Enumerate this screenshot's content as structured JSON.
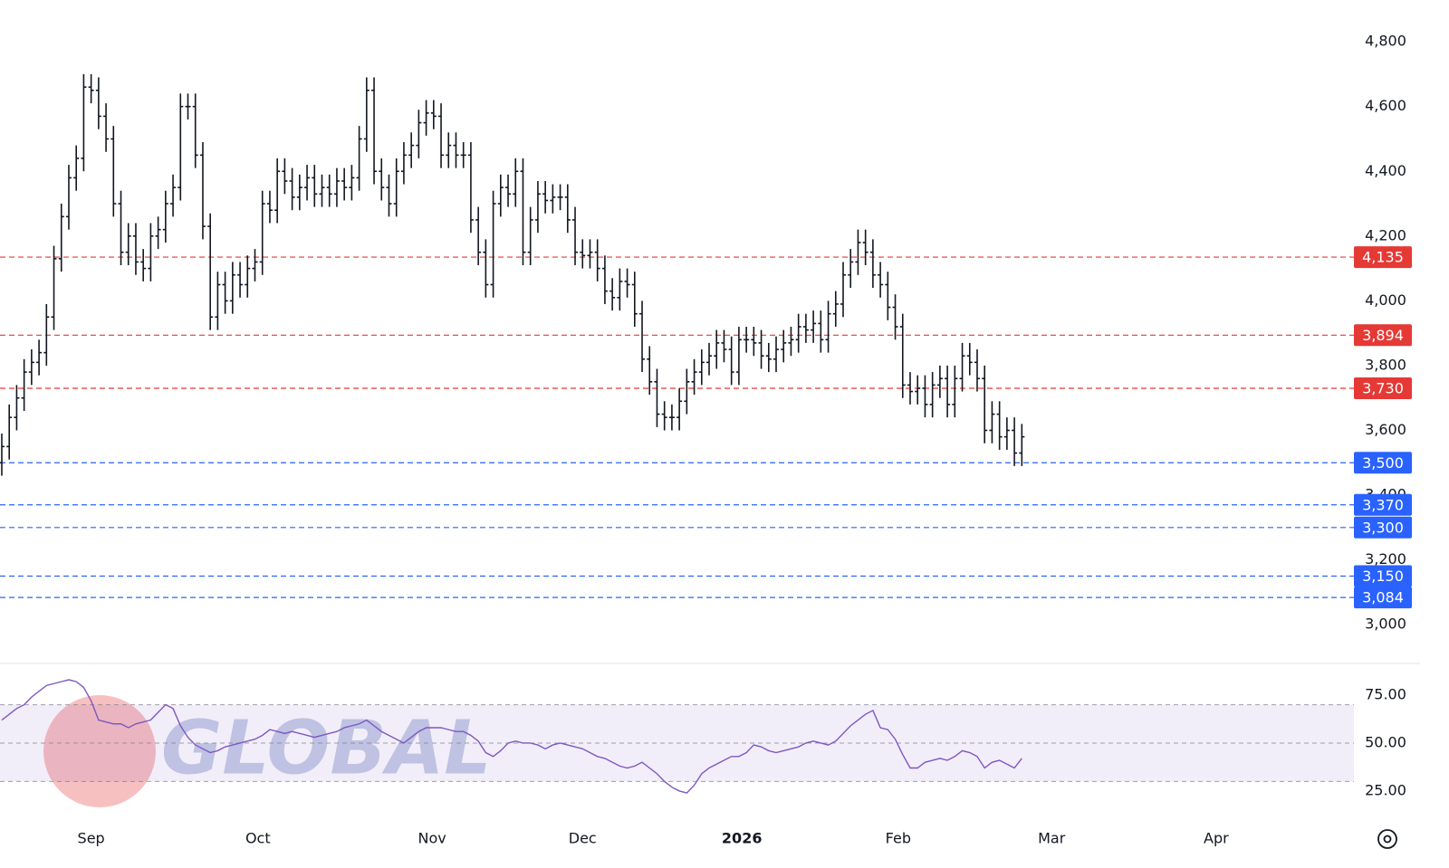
{
  "chart_data": {
    "type": "ohlc",
    "watermark": "GLOBAL",
    "color": "#131722",
    "xlim": [
      -0.24,
      181.6
    ],
    "xticks": [
      {
        "value": 12.0,
        "label": "Sep"
      },
      {
        "value": 34.4,
        "label": "Oct"
      },
      {
        "value": 57.8,
        "label": "Nov"
      },
      {
        "value": 78.0,
        "label": "Dec"
      },
      {
        "value": 99.4,
        "label": "2026"
      },
      {
        "value": 120.4,
        "label": "Feb"
      },
      {
        "value": 141.0,
        "label": "Mar"
      },
      {
        "value": 163.1,
        "label": "Apr"
      }
    ],
    "ylim": [
      2883,
      4929
    ],
    "yticks": [
      {
        "value": 3000,
        "label": "3,000"
      },
      {
        "value": 3200,
        "label": "3,200"
      },
      {
        "value": 3400,
        "label": "3,400"
      },
      {
        "value": 3600,
        "label": "3,600"
      },
      {
        "value": 3800,
        "label": "3,800"
      },
      {
        "value": 4000,
        "label": "4,000"
      },
      {
        "value": 4200,
        "label": "4,200"
      },
      {
        "value": 4400,
        "label": "4,400"
      },
      {
        "value": 4600,
        "label": "4,600"
      },
      {
        "value": 4800,
        "label": "4,800"
      }
    ],
    "levels": [
      {
        "value": 4135,
        "label": "4,135",
        "color": "#e53935"
      },
      {
        "value": 3894,
        "label": "3,894",
        "color": "#e53935"
      },
      {
        "value": 3730,
        "label": "3,730",
        "color": "#e53935"
      },
      {
        "value": 3500,
        "label": "3,500",
        "color": "#2962ff"
      },
      {
        "value": 3370,
        "label": "3,370",
        "color": "#2962ff"
      },
      {
        "value": 3300,
        "label": "3,300",
        "color": "#2962ff"
      },
      {
        "value": 3150,
        "label": "3,150",
        "color": "#2962ff"
      },
      {
        "value": 3084,
        "label": "3,084",
        "color": "#2962ff"
      }
    ],
    "ohlc": [
      [
        3500,
        3590,
        3460,
        3550
      ],
      [
        3550,
        3680,
        3510,
        3640
      ],
      [
        3640,
        3740,
        3600,
        3700
      ],
      [
        3700,
        3820,
        3660,
        3780
      ],
      [
        3780,
        3850,
        3740,
        3810
      ],
      [
        3810,
        3880,
        3770,
        3840
      ],
      [
        3840,
        3990,
        3800,
        3950
      ],
      [
        3950,
        4170,
        3910,
        4130
      ],
      [
        4130,
        4300,
        4090,
        4260
      ],
      [
        4260,
        4420,
        4220,
        4380
      ],
      [
        4380,
        4480,
        4340,
        4440
      ],
      [
        4440,
        4700,
        4400,
        4660
      ],
      [
        4660,
        4700,
        4610,
        4650
      ],
      [
        4650,
        4690,
        4530,
        4570
      ],
      [
        4570,
        4610,
        4460,
        4500
      ],
      [
        4500,
        4540,
        4260,
        4300
      ],
      [
        4300,
        4340,
        4110,
        4150
      ],
      [
        4150,
        4240,
        4110,
        4200
      ],
      [
        4200,
        4240,
        4080,
        4120
      ],
      [
        4120,
        4160,
        4060,
        4100
      ],
      [
        4100,
        4240,
        4060,
        4200
      ],
      [
        4200,
        4260,
        4160,
        4220
      ],
      [
        4220,
        4340,
        4180,
        4300
      ],
      [
        4300,
        4390,
        4260,
        4350
      ],
      [
        4350,
        4640,
        4310,
        4600
      ],
      [
        4600,
        4640,
        4560,
        4600
      ],
      [
        4600,
        4640,
        4410,
        4450
      ],
      [
        4450,
        4490,
        4190,
        4230
      ],
      [
        4230,
        4270,
        3910,
        3950
      ],
      [
        3950,
        4090,
        3910,
        4050
      ],
      [
        4050,
        4090,
        3960,
        4000
      ],
      [
        4000,
        4120,
        3960,
        4080
      ],
      [
        4080,
        4120,
        4010,
        4050
      ],
      [
        4050,
        4140,
        4010,
        4100
      ],
      [
        4100,
        4160,
        4060,
        4120
      ],
      [
        4120,
        4340,
        4080,
        4300
      ],
      [
        4300,
        4340,
        4240,
        4280
      ],
      [
        4280,
        4440,
        4240,
        4400
      ],
      [
        4400,
        4440,
        4330,
        4370
      ],
      [
        4370,
        4410,
        4280,
        4320
      ],
      [
        4320,
        4390,
        4280,
        4350
      ],
      [
        4350,
        4420,
        4310,
        4380
      ],
      [
        4380,
        4420,
        4290,
        4330
      ],
      [
        4330,
        4390,
        4290,
        4350
      ],
      [
        4350,
        4390,
        4290,
        4330
      ],
      [
        4330,
        4410,
        4290,
        4370
      ],
      [
        4370,
        4410,
        4310,
        4350
      ],
      [
        4350,
        4420,
        4310,
        4380
      ],
      [
        4380,
        4540,
        4340,
        4500
      ],
      [
        4500,
        4690,
        4460,
        4650
      ],
      [
        4650,
        4690,
        4360,
        4400
      ],
      [
        4400,
        4440,
        4310,
        4350
      ],
      [
        4350,
        4390,
        4260,
        4300
      ],
      [
        4300,
        4440,
        4260,
        4400
      ],
      [
        4400,
        4490,
        4360,
        4450
      ],
      [
        4450,
        4520,
        4410,
        4480
      ],
      [
        4480,
        4590,
        4440,
        4550
      ],
      [
        4550,
        4620,
        4510,
        4580
      ],
      [
        4580,
        4620,
        4530,
        4570
      ],
      [
        4570,
        4610,
        4410,
        4450
      ],
      [
        4450,
        4520,
        4410,
        4480
      ],
      [
        4480,
        4520,
        4410,
        4450
      ],
      [
        4450,
        4490,
        4410,
        4450
      ],
      [
        4450,
        4490,
        4210,
        4250
      ],
      [
        4250,
        4290,
        4110,
        4150
      ],
      [
        4150,
        4190,
        4010,
        4050
      ],
      [
        4050,
        4340,
        4010,
        4300
      ],
      [
        4300,
        4390,
        4260,
        4350
      ],
      [
        4350,
        4390,
        4290,
        4330
      ],
      [
        4330,
        4440,
        4290,
        4400
      ],
      [
        4400,
        4440,
        4110,
        4150
      ],
      [
        4150,
        4290,
        4110,
        4250
      ],
      [
        4250,
        4370,
        4210,
        4330
      ],
      [
        4330,
        4370,
        4270,
        4310
      ],
      [
        4310,
        4360,
        4270,
        4320
      ],
      [
        4320,
        4360,
        4280,
        4320
      ],
      [
        4320,
        4360,
        4210,
        4250
      ],
      [
        4250,
        4290,
        4110,
        4150
      ],
      [
        4150,
        4190,
        4100,
        4140
      ],
      [
        4140,
        4190,
        4100,
        4150
      ],
      [
        4150,
        4190,
        4060,
        4100
      ],
      [
        4100,
        4140,
        3990,
        4030
      ],
      [
        4030,
        4070,
        3970,
        4010
      ],
      [
        4010,
        4100,
        3970,
        4060
      ],
      [
        4060,
        4100,
        4010,
        4050
      ],
      [
        4050,
        4090,
        3920,
        3960
      ],
      [
        3960,
        4000,
        3780,
        3820
      ],
      [
        3820,
        3860,
        3710,
        3750
      ],
      [
        3750,
        3790,
        3610,
        3650
      ],
      [
        3650,
        3690,
        3600,
        3640
      ],
      [
        3640,
        3680,
        3600,
        3640
      ],
      [
        3640,
        3730,
        3600,
        3690
      ],
      [
        3690,
        3790,
        3650,
        3750
      ],
      [
        3750,
        3820,
        3710,
        3780
      ],
      [
        3780,
        3850,
        3740,
        3810
      ],
      [
        3810,
        3870,
        3770,
        3830
      ],
      [
        3830,
        3910,
        3790,
        3870
      ],
      [
        3870,
        3910,
        3810,
        3850
      ],
      [
        3850,
        3890,
        3740,
        3780
      ],
      [
        3780,
        3920,
        3740,
        3880
      ],
      [
        3880,
        3920,
        3840,
        3880
      ],
      [
        3880,
        3920,
        3830,
        3870
      ],
      [
        3870,
        3910,
        3790,
        3830
      ],
      [
        3830,
        3870,
        3780,
        3820
      ],
      [
        3820,
        3890,
        3780,
        3850
      ],
      [
        3850,
        3910,
        3810,
        3870
      ],
      [
        3870,
        3920,
        3830,
        3880
      ],
      [
        3880,
        3960,
        3840,
        3920
      ],
      [
        3920,
        3960,
        3870,
        3910
      ],
      [
        3910,
        3970,
        3870,
        3930
      ],
      [
        3930,
        3970,
        3840,
        3880
      ],
      [
        3880,
        4000,
        3840,
        3960
      ],
      [
        3960,
        4030,
        3920,
        3990
      ],
      [
        3990,
        4120,
        3950,
        4080
      ],
      [
        4080,
        4160,
        4040,
        4120
      ],
      [
        4120,
        4220,
        4080,
        4180
      ],
      [
        4180,
        4220,
        4110,
        4150
      ],
      [
        4150,
        4190,
        4040,
        4080
      ],
      [
        4080,
        4120,
        4010,
        4050
      ],
      [
        4050,
        4090,
        3940,
        3980
      ],
      [
        3980,
        4020,
        3880,
        3920
      ],
      [
        3920,
        3960,
        3700,
        3740
      ],
      [
        3740,
        3780,
        3680,
        3720
      ],
      [
        3720,
        3770,
        3680,
        3730
      ],
      [
        3730,
        3770,
        3640,
        3680
      ],
      [
        3680,
        3780,
        3640,
        3740
      ],
      [
        3740,
        3800,
        3700,
        3760
      ],
      [
        3760,
        3800,
        3640,
        3680
      ],
      [
        3680,
        3800,
        3640,
        3760
      ],
      [
        3760,
        3870,
        3720,
        3830
      ],
      [
        3830,
        3870,
        3770,
        3810
      ],
      [
        3810,
        3850,
        3720,
        3760
      ],
      [
        3760,
        3800,
        3560,
        3600
      ],
      [
        3600,
        3690,
        3560,
        3650
      ],
      [
        3650,
        3690,
        3540,
        3580
      ],
      [
        3580,
        3640,
        3540,
        3600
      ],
      [
        3600,
        3640,
        3490,
        3530
      ],
      [
        3530,
        3620,
        3490,
        3580
      ]
    ],
    "rsi": {
      "color": "#7e57c2",
      "ylim": [
        12.7,
        91.5
      ],
      "yticks": [
        {
          "value": 25,
          "label": "25.00"
        },
        {
          "value": 50,
          "label": "50.00"
        },
        {
          "value": 75,
          "label": "75.00"
        }
      ],
      "bands": [
        30,
        50,
        70
      ],
      "values": [
        62,
        65,
        68,
        70,
        74,
        77,
        80,
        81,
        82,
        83,
        82,
        79,
        72,
        62,
        61,
        60,
        60,
        58,
        60,
        61,
        62,
        66,
        70,
        68,
        59,
        53,
        49,
        47,
        45,
        46,
        48,
        49,
        50,
        51,
        52,
        54,
        57,
        56,
        55,
        56,
        55,
        54,
        53,
        54,
        55,
        56,
        58,
        59,
        60,
        62,
        59,
        56,
        54,
        52,
        50,
        53,
        56,
        58,
        58,
        58,
        57,
        56,
        56,
        54,
        51,
        45,
        43,
        46,
        50,
        51,
        50,
        50,
        49,
        47,
        49,
        50,
        49,
        48,
        47,
        45,
        43,
        42,
        40,
        38,
        37,
        38,
        40,
        37,
        34,
        30,
        27,
        25,
        24,
        28,
        34,
        37,
        39,
        41,
        43,
        43,
        45,
        49,
        48,
        46,
        45,
        46,
        47,
        48,
        50,
        51,
        50,
        49,
        51,
        55,
        59,
        62,
        65,
        67,
        58,
        57,
        52,
        44,
        37,
        37,
        40,
        41,
        42,
        41,
        43,
        46,
        45,
        43,
        37,
        40,
        41,
        39,
        37,
        42
      ]
    }
  }
}
